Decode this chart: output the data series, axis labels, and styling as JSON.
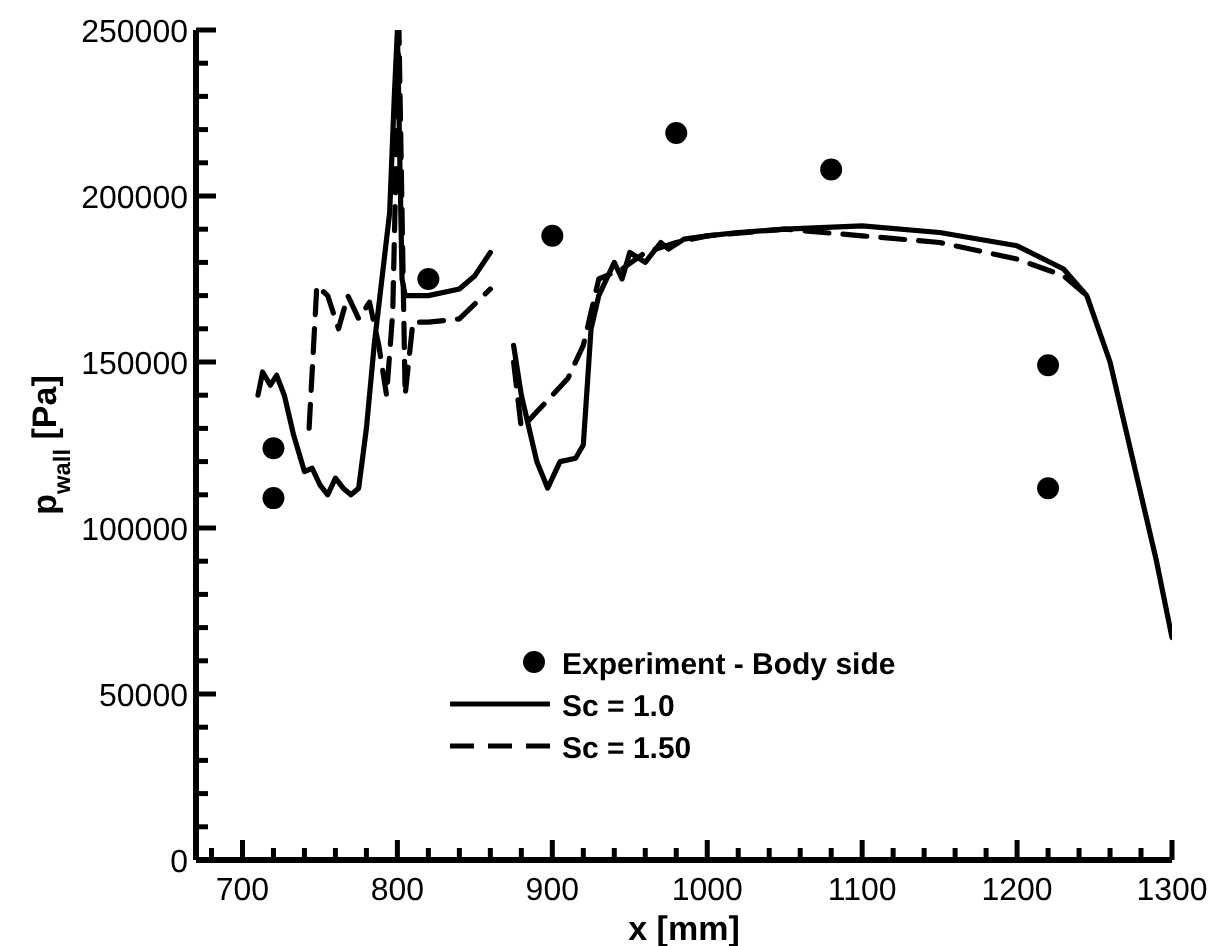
{
  "chart_data": {
    "type": "line",
    "xlabel": "x [mm]",
    "ylabel": "p$_{wall}$ [Pa]",
    "xlim": [
      670,
      1300
    ],
    "ylim": [
      0,
      250000
    ],
    "xticks": [
      {
        "value": 680,
        "label": null
      },
      700,
      {
        "value": 720,
        "label": null
      },
      {
        "value": 740,
        "label": null
      },
      {
        "value": 760,
        "label": null
      },
      {
        "value": 780,
        "label": null
      },
      800,
      {
        "value": 820,
        "label": null
      },
      {
        "value": 840,
        "label": null
      },
      {
        "value": 860,
        "label": null
      },
      {
        "value": 880,
        "label": null
      },
      900,
      {
        "value": 920,
        "label": null
      },
      {
        "value": 940,
        "label": null
      },
      {
        "value": 960,
        "label": null
      },
      {
        "value": 980,
        "label": null
      },
      1000,
      {
        "value": 1020,
        "label": null
      },
      {
        "value": 1040,
        "label": null
      },
      {
        "value": 1060,
        "label": null
      },
      {
        "value": 1080,
        "label": null
      },
      1100,
      {
        "value": 1120,
        "label": null
      },
      {
        "value": 1140,
        "label": null
      },
      {
        "value": 1160,
        "label": null
      },
      {
        "value": 1180,
        "label": null
      },
      1200,
      {
        "value": 1220,
        "label": null
      },
      {
        "value": 1240,
        "label": null
      },
      {
        "value": 1260,
        "label": null
      },
      {
        "value": 1280,
        "label": null
      },
      1300
    ],
    "yticks": [
      0,
      {
        "value": 10000,
        "label": null
      },
      {
        "value": 20000,
        "label": null
      },
      {
        "value": 30000,
        "label": null
      },
      {
        "value": 40000,
        "label": null
      },
      50000,
      {
        "value": 60000,
        "label": null
      },
      {
        "value": 70000,
        "label": null
      },
      {
        "value": 80000,
        "label": null
      },
      {
        "value": 90000,
        "label": null
      },
      100000,
      {
        "value": 110000,
        "label": null
      },
      {
        "value": 120000,
        "label": null
      },
      {
        "value": 130000,
        "label": null
      },
      {
        "value": 140000,
        "label": null
      },
      150000,
      {
        "value": 160000,
        "label": null
      },
      {
        "value": 170000,
        "label": null
      },
      {
        "value": 180000,
        "label": null
      },
      {
        "value": 190000,
        "label": null
      },
      200000,
      {
        "value": 210000,
        "label": null
      },
      {
        "value": 220000,
        "label": null
      },
      {
        "value": 230000,
        "label": null
      },
      {
        "value": 240000,
        "label": null
      },
      250000
    ],
    "grid": false,
    "legend": "bottom",
    "series": [
      {
        "name": "Experiment - Body side",
        "type": "scatter",
        "marker": "circle",
        "color": "#000000",
        "x": [
          720,
          720,
          820,
          900,
          980,
          1080,
          1220,
          1220
        ],
        "values": [
          109000,
          124000,
          175000,
          188000,
          219000,
          208000,
          149000,
          112000
        ]
      },
      {
        "name": "Sc = 1.0",
        "line_style": "solid",
        "color": "#000000",
        "x": [
          710,
          713,
          718,
          722,
          727,
          733,
          740,
          745,
          750,
          755,
          760,
          765,
          770,
          775,
          780,
          785,
          790,
          795,
          798,
          800,
          803,
          805,
          820,
          840,
          850,
          860,
          868,
          875,
          880,
          890,
          897,
          905,
          915,
          920,
          925,
          930,
          940,
          945,
          950,
          960,
          970,
          975,
          985,
          1000,
          1020,
          1050,
          1100,
          1150,
          1200,
          1230,
          1245,
          1260,
          1275,
          1290,
          1300
        ],
        "values": [
          140000,
          147000,
          143000,
          146000,
          140000,
          128000,
          117000,
          118000,
          113000,
          110000,
          115000,
          112000,
          110000,
          112000,
          130000,
          155000,
          175000,
          195000,
          230000,
          250000,
          175000,
          170000,
          170000,
          172000,
          176000,
          183000,
          null,
          155000,
          140000,
          120000,
          112000,
          120000,
          121000,
          125000,
          160000,
          170000,
          180000,
          175000,
          183000,
          180000,
          186000,
          184000,
          187000,
          188000,
          189000,
          190000,
          191000,
          189000,
          185000,
          178000,
          170000,
          150000,
          120000,
          90000,
          67000
        ]
      },
      {
        "name": "Sc = 1.50",
        "line_style": "dashed",
        "color": "#000000",
        "x": [
          743,
          748,
          755,
          762,
          768,
          775,
          782,
          788,
          793,
          797,
          801,
          805,
          810,
          820,
          840,
          860,
          868,
          875,
          880,
          890,
          900,
          910,
          920,
          930,
          945,
          960,
          980,
          1000,
          1050,
          1100,
          1150,
          1200,
          1230,
          1245
        ],
        "values": [
          130000,
          173000,
          170000,
          160000,
          170000,
          163000,
          168000,
          155000,
          140000,
          165000,
          250000,
          140000,
          162000,
          162000,
          163000,
          172000,
          null,
          150000,
          130000,
          135000,
          140000,
          145000,
          155000,
          175000,
          178000,
          183000,
          186000,
          188000,
          190000,
          188000,
          186000,
          181000,
          176000,
          170000
        ]
      }
    ]
  }
}
